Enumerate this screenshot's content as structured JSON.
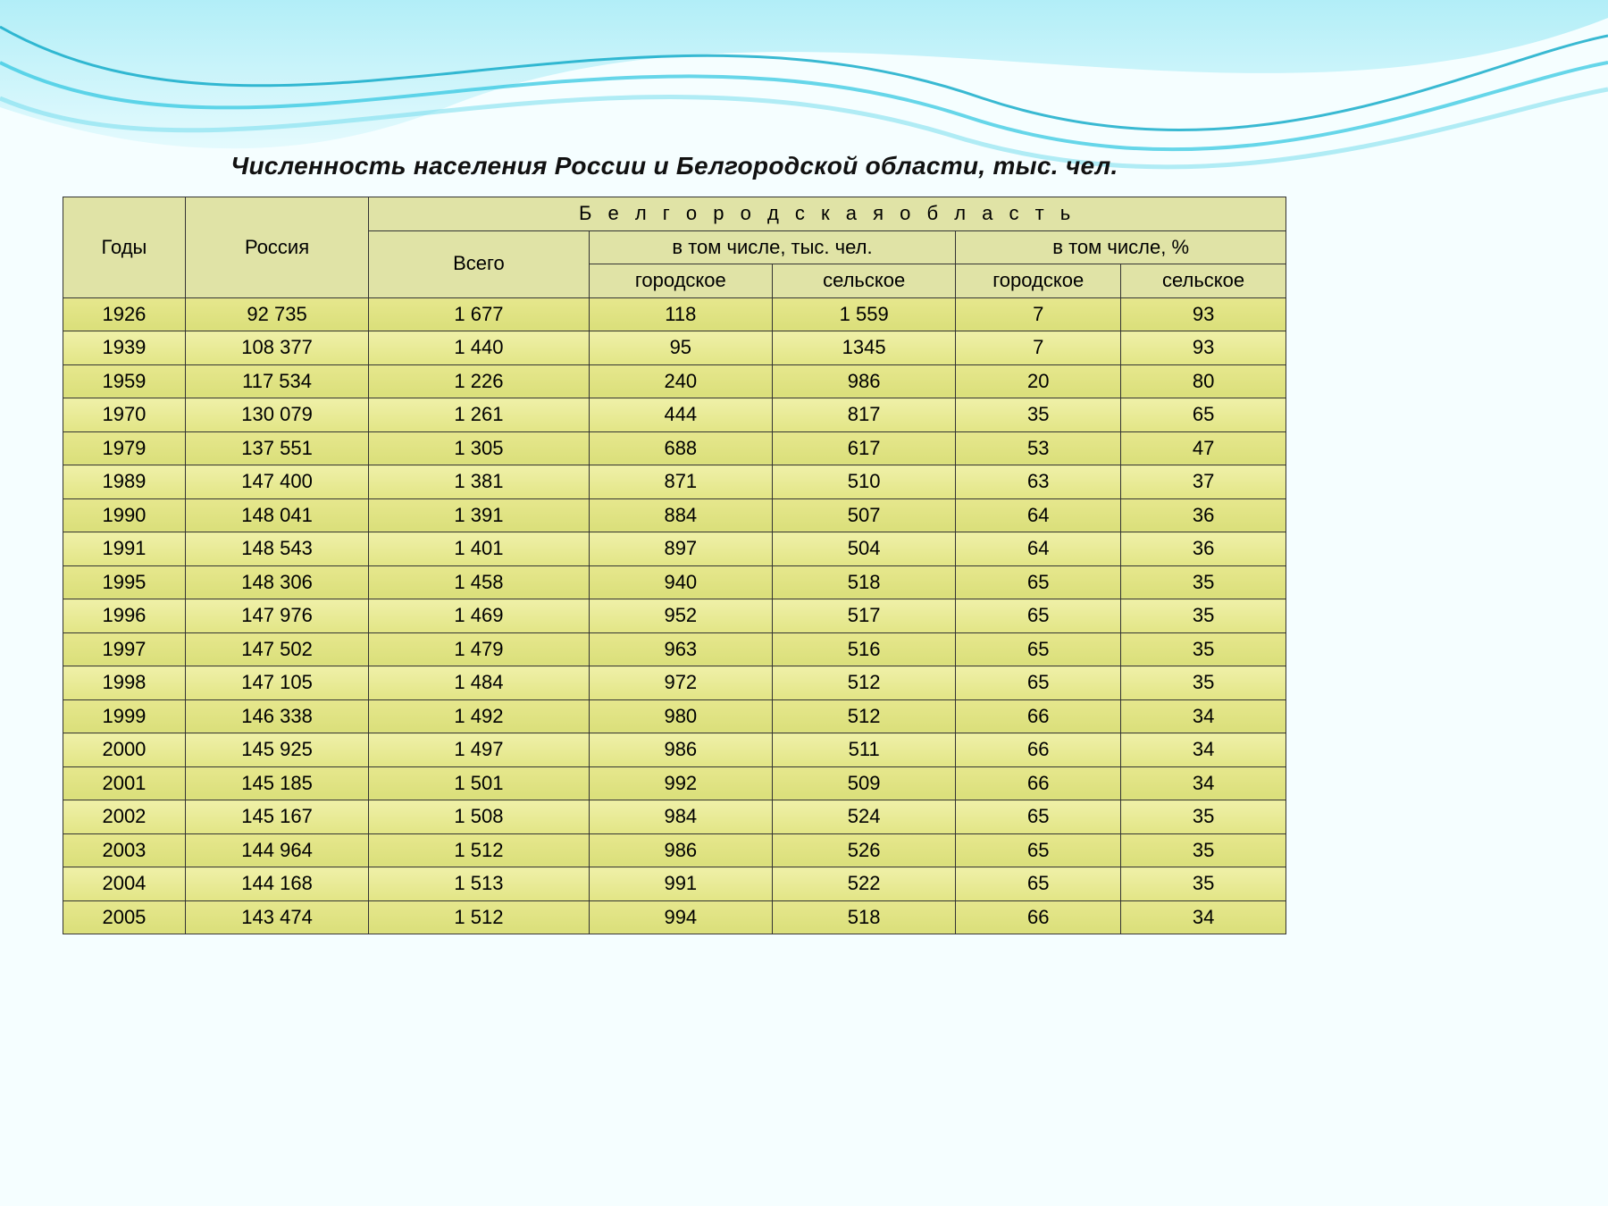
{
  "title": "Численность населения России и Белгородской области, тыс. чел.",
  "table": {
    "type": "table",
    "background_color": "#e3e698",
    "border_color": "#333333",
    "header_bg": "#e0e3a6",
    "row_odd_bg": "#dadf7a",
    "row_even_bg": "#e2e585",
    "font_size": 22,
    "title_fontsize": 28,
    "headers": {
      "years": "Годы",
      "russia": "Россия",
      "region": "Б е л г о р о д с к а я   о б л а с т ь",
      "total": "Всего",
      "incl_thousand": "в том числе, тыс. чел.",
      "incl_percent": "в том числе, %",
      "urban": "городское",
      "rural": "сельское"
    },
    "rows": [
      {
        "year": "1926",
        "russia": "92 735",
        "total": "1 677",
        "urban_t": "118",
        "rural_t": "1 559",
        "urban_p": "7",
        "rural_p": "93"
      },
      {
        "year": "1939",
        "russia": "108 377",
        "total": "1 440",
        "urban_t": "95",
        "rural_t": "1345",
        "urban_p": "7",
        "rural_p": "93"
      },
      {
        "year": "1959",
        "russia": "117 534",
        "total": "1 226",
        "urban_t": "240",
        "rural_t": "986",
        "urban_p": "20",
        "rural_p": "80"
      },
      {
        "year": "1970",
        "russia": "130 079",
        "total": "1 261",
        "urban_t": "444",
        "rural_t": "817",
        "urban_p": "35",
        "rural_p": "65"
      },
      {
        "year": "1979",
        "russia": "137 551",
        "total": "1 305",
        "urban_t": "688",
        "rural_t": "617",
        "urban_p": "53",
        "rural_p": "47"
      },
      {
        "year": "1989",
        "russia": "147 400",
        "total": "1 381",
        "urban_t": "871",
        "rural_t": "510",
        "urban_p": "63",
        "rural_p": "37"
      },
      {
        "year": "1990",
        "russia": "148 041",
        "total": "1 391",
        "urban_t": "884",
        "rural_t": "507",
        "urban_p": "64",
        "rural_p": "36"
      },
      {
        "year": "1991",
        "russia": "148 543",
        "total": "1 401",
        "urban_t": "897",
        "rural_t": "504",
        "urban_p": "64",
        "rural_p": "36"
      },
      {
        "year": "1995",
        "russia": "148 306",
        "total": "1 458",
        "urban_t": "940",
        "rural_t": "518",
        "urban_p": "65",
        "rural_p": "35"
      },
      {
        "year": "1996",
        "russia": "147 976",
        "total": "1 469",
        "urban_t": "952",
        "rural_t": "517",
        "urban_p": "65",
        "rural_p": "35"
      },
      {
        "year": "1997",
        "russia": "147 502",
        "total": "1 479",
        "urban_t": "963",
        "rural_t": "516",
        "urban_p": "65",
        "rural_p": "35"
      },
      {
        "year": "1998",
        "russia": "147 105",
        "total": "1 484",
        "urban_t": "972",
        "rural_t": "512",
        "urban_p": "65",
        "rural_p": "35"
      },
      {
        "year": "1999",
        "russia": "146 338",
        "total": "1 492",
        "urban_t": "980",
        "rural_t": "512",
        "urban_p": "66",
        "rural_p": "34"
      },
      {
        "year": "2000",
        "russia": "145 925",
        "total": "1 497",
        "urban_t": "986",
        "rural_t": "511",
        "urban_p": "66",
        "rural_p": "34"
      },
      {
        "year": "2001",
        "russia": "145 185",
        "total": "1 501",
        "urban_t": "992",
        "rural_t": "509",
        "urban_p": "66",
        "rural_p": "34"
      },
      {
        "year": "2002",
        "russia": "145 167",
        "total": "1 508",
        "urban_t": "984",
        "rural_t": "524",
        "urban_p": "65",
        "rural_p": "35"
      },
      {
        "year": "2003",
        "russia": "144 964",
        "total": "1 512",
        "urban_t": "986",
        "rural_t": "526",
        "urban_p": "65",
        "rural_p": "35"
      },
      {
        "year": "2004",
        "russia": "144 168",
        "total": "1 513",
        "urban_t": "991",
        "rural_t": "522",
        "urban_p": "65",
        "rural_p": "35"
      },
      {
        "year": "2005",
        "russia": "143 474",
        "total": "1 512",
        "urban_t": "994",
        "rural_t": "518",
        "urban_p": "66",
        "rural_p": "34"
      }
    ]
  },
  "wave": {
    "colors": [
      "#29c4e0",
      "#6bd9ec",
      "#b8eef7",
      "#ffffff"
    ],
    "stroke": "#0aa7c7"
  }
}
